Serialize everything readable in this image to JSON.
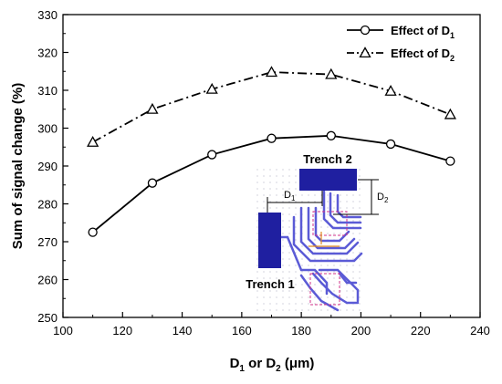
{
  "chart_data": {
    "type": "line",
    "x": [
      110,
      130,
      150,
      170,
      190,
      210,
      230
    ],
    "series": [
      {
        "name": "Effect of D",
        "sub": "1",
        "marker": "circle",
        "line_style": "solid",
        "values": [
          272.5,
          285.5,
          293.0,
          297.3,
          298.0,
          295.8,
          291.3
        ]
      },
      {
        "name": "Effect of D",
        "sub": "2",
        "marker": "triangle",
        "line_style": "dash-dot",
        "values": [
          296.3,
          305.0,
          310.3,
          314.8,
          314.2,
          309.8,
          303.6
        ]
      }
    ],
    "xlim": [
      100,
      240
    ],
    "ylim": [
      250,
      330
    ],
    "xticks": [
      100,
      120,
      140,
      160,
      180,
      200,
      220,
      240
    ],
    "yticks": [
      250,
      260,
      270,
      280,
      290,
      300,
      310,
      320,
      330
    ],
    "xlabel": {
      "main": "D",
      "sub1": "1",
      "mid": " or D",
      "sub2": "2",
      "unit": " (μm)"
    },
    "ylabel": "Sum of signal change (%)",
    "grid": false,
    "legend_position": "top-right",
    "inset": {
      "trench1_label": "Trench 1",
      "trench2_label": "Trench 2",
      "d1_label": "D",
      "d1_sub": "1",
      "d2_label": "D",
      "d2_sub": "2",
      "trench_color": "#1f1fa0",
      "wiring_color": "#5b5bd6"
    }
  }
}
